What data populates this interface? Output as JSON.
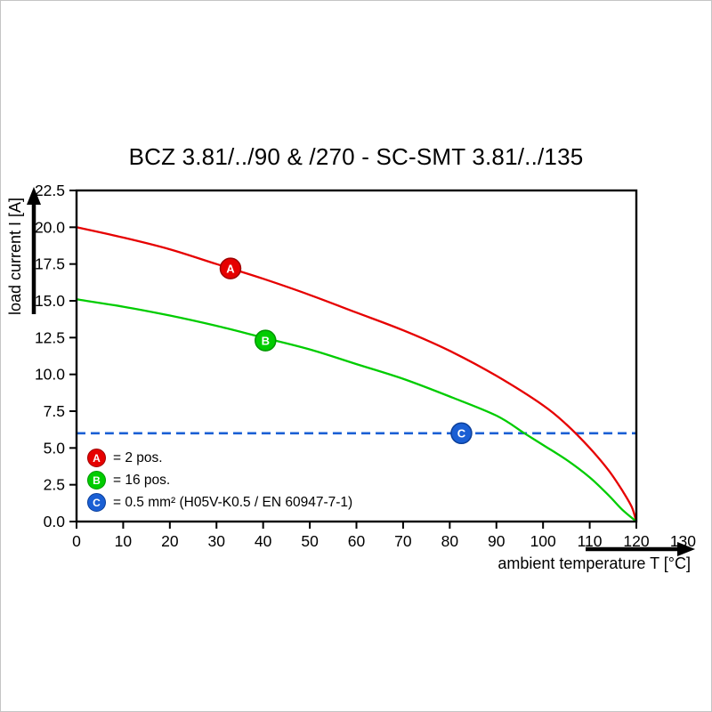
{
  "page": {
    "background": "#ffffff",
    "frame_border": "#c4c4c4"
  },
  "chart_data": {
    "type": "line",
    "title": "BCZ 3.81/../90 & /270 - SC-SMT 3.81/../135",
    "xlabel": "ambient temperature T [°C]",
    "ylabel": "load current I [A]",
    "xlim": [
      0,
      120
    ],
    "ylim": [
      0,
      22.5
    ],
    "xticks": [
      0,
      10,
      20,
      30,
      40,
      50,
      60,
      70,
      80,
      90,
      100,
      110,
      120,
      130
    ],
    "yticks": [
      "0.0",
      "2.5",
      "5.0",
      "7.5",
      "10.0",
      "12.5",
      "15.0",
      "17.5",
      "20.0",
      "22.5"
    ],
    "grid": false,
    "axis_color": "#000000",
    "series": [
      {
        "name": "a",
        "legend": "= 2 pos.",
        "color": "#e60000",
        "style": "solid",
        "marker": {
          "letter": "A",
          "x": 33,
          "y": 17.2,
          "fill": "#e60000",
          "stroke": "#9e0000"
        },
        "points": [
          [
            0,
            20.0
          ],
          [
            10,
            19.3
          ],
          [
            20,
            18.5
          ],
          [
            30,
            17.5
          ],
          [
            40,
            16.5
          ],
          [
            50,
            15.4
          ],
          [
            60,
            14.2
          ],
          [
            70,
            13.0
          ],
          [
            80,
            11.6
          ],
          [
            90,
            9.9
          ],
          [
            100,
            7.9
          ],
          [
            105,
            6.6
          ],
          [
            110,
            5.0
          ],
          [
            114,
            3.5
          ],
          [
            117,
            2.1
          ],
          [
            119,
            1.0
          ],
          [
            120,
            0
          ]
        ]
      },
      {
        "name": "b",
        "legend": "= 16 pos.",
        "color": "#00cc00",
        "style": "solid",
        "marker": {
          "letter": "B",
          "x": 40.5,
          "y": 12.3,
          "fill": "#00cc00",
          "stroke": "#009600"
        },
        "points": [
          [
            0,
            15.1
          ],
          [
            10,
            14.6
          ],
          [
            20,
            14.0
          ],
          [
            30,
            13.3
          ],
          [
            40,
            12.5
          ],
          [
            50,
            11.7
          ],
          [
            60,
            10.7
          ],
          [
            70,
            9.7
          ],
          [
            80,
            8.5
          ],
          [
            90,
            7.2
          ],
          [
            96,
            6.0
          ],
          [
            100,
            5.2
          ],
          [
            105,
            4.2
          ],
          [
            110,
            3.0
          ],
          [
            114,
            1.8
          ],
          [
            117,
            0.8
          ],
          [
            120,
            0
          ]
        ]
      },
      {
        "name": "c",
        "legend": "= 0.5 mm² (H05V-K0.5 / EN 60947-7-1)",
        "color": "#1a5fd4",
        "style": "dashed",
        "marker": {
          "letter": "C",
          "x": 82.5,
          "y": 6.0,
          "fill": "#1a5fd4",
          "stroke": "#0b3f9a"
        },
        "points": [
          [
            0,
            6.0
          ],
          [
            120,
            6.0
          ]
        ]
      }
    ]
  }
}
